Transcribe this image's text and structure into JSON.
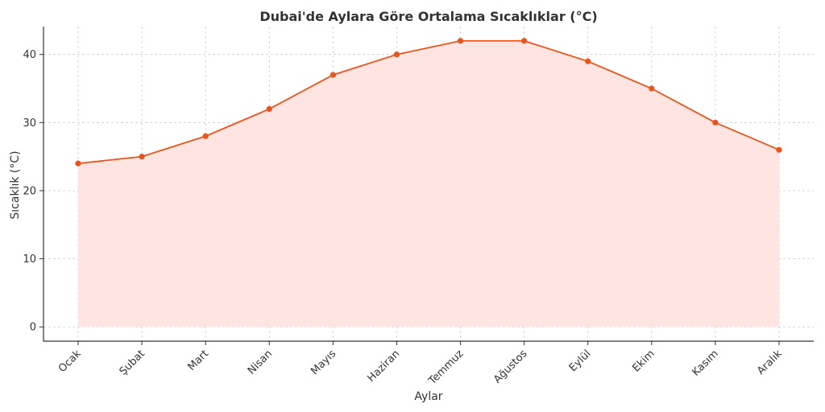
{
  "chart_data": {
    "type": "area",
    "title": "Dubai'de Aylara Göre Ortalama Sıcaklıklar (°C)",
    "xlabel": "Aylar",
    "ylabel": "Sıcaklık (°C)",
    "categories": [
      "Ocak",
      "Şubat",
      "Mart",
      "Nisan",
      "Mayıs",
      "Haziran",
      "Temmuz",
      "Ağustos",
      "Eylül",
      "Ekim",
      "Kasım",
      "Aralık"
    ],
    "series": [
      {
        "values": [
          24,
          25,
          28,
          32,
          37,
          40,
          42,
          42,
          39,
          35,
          30,
          26
        ]
      }
    ],
    "ylim": [
      -2.1,
      44.1
    ],
    "yticks": [
      0,
      10,
      20,
      30,
      40
    ],
    "grid": true,
    "colors": {
      "line": "#e8541a",
      "fill": "#ffe4e1"
    }
  }
}
